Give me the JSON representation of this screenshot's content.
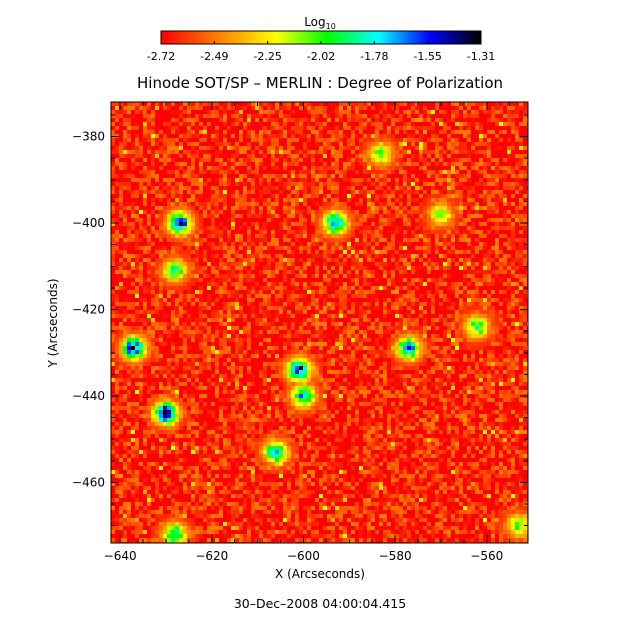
{
  "chart_data": {
    "type": "heatmap",
    "title": "Hinode SOT/SP – MERLIN : Degree of Polarization",
    "xlabel": "X (Arcseconds)",
    "ylabel": "Y (Arcseconds)",
    "xlim": [
      -642,
      -551
    ],
    "ylim": [
      -474,
      -372
    ],
    "xticks": [
      -640,
      -620,
      -600,
      -580,
      -560
    ],
    "yticks": [
      -380,
      -400,
      -420,
      -440,
      -460
    ],
    "colorbar": {
      "label_base": "Log",
      "label_sub": "10",
      "range": [
        -2.72,
        -1.31
      ],
      "ticks": [
        "-2.72",
        "-2.49",
        "-2.25",
        "-2.02",
        "-1.78",
        "-1.55",
        "-1.31"
      ],
      "colormap": [
        "#ff0000",
        "#ff8000",
        "#ffff00",
        "#00ff00",
        "#00ffff",
        "#0000ff",
        "#000000"
      ]
    },
    "background_level": -2.66,
    "patches": [
      {
        "x": -630,
        "y": -444,
        "level": -1.42
      },
      {
        "x": -637,
        "y": -429,
        "level": -1.5
      },
      {
        "x": -627,
        "y": -400,
        "level": -1.55
      },
      {
        "x": -601,
        "y": -434,
        "level": -1.5
      },
      {
        "x": -600,
        "y": -440,
        "level": -1.7
      },
      {
        "x": -593,
        "y": -400,
        "level": -1.62
      },
      {
        "x": -577,
        "y": -429,
        "level": -1.68
      },
      {
        "x": -606,
        "y": -453,
        "level": -1.75
      },
      {
        "x": -628,
        "y": -411,
        "level": -1.95
      },
      {
        "x": -628,
        "y": -472,
        "level": -1.85
      },
      {
        "x": -562,
        "y": -424,
        "level": -1.95
      },
      {
        "x": -583,
        "y": -384,
        "level": -2.05
      },
      {
        "x": -570,
        "y": -398,
        "level": -2.1
      },
      {
        "x": -553,
        "y": -470,
        "level": -2.0
      }
    ],
    "footer_date": "30–Dec–2008 04:00:04.415"
  }
}
